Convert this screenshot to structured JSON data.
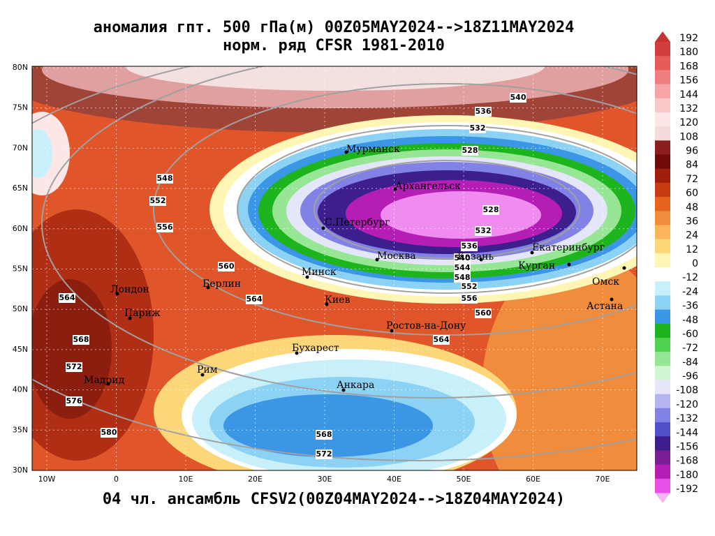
{
  "header": {
    "title_line1": "аномалия гпт. 500 гПа(м) 00Z05MAY2024-->18Z11MAY2024",
    "title_line2": "норм. ряд CFSR 1981-2010"
  },
  "map": {
    "lat_labels": [
      "80N",
      "75N",
      "70N",
      "65N",
      "60N",
      "55N",
      "50N",
      "45N",
      "40N",
      "35N",
      "30N"
    ],
    "lon_labels": [
      "10W",
      "0",
      "10E",
      "20E",
      "30E",
      "40E",
      "50E",
      "60E",
      "70E"
    ],
    "contour_labels": [
      "540",
      "536",
      "532",
      "528",
      "548",
      "552",
      "556",
      "528",
      "532",
      "536",
      "540",
      "544",
      "548",
      "552",
      "556",
      "560",
      "560",
      "564",
      "564",
      "568",
      "572",
      "576",
      "580",
      "568",
      "572",
      "564"
    ],
    "cities": [
      "Мурманск",
      "Архангельск",
      "С.Петербург",
      "Москва",
      "Казань",
      "Екатеринбург",
      "Курган",
      "Омск",
      "Астана",
      "Минск",
      "Берлин",
      "Лондон",
      "Париж",
      "Киев",
      "Ростов-на-Дону",
      "Бухарест",
      "Рим",
      "Мадрид",
      "Анкара"
    ]
  },
  "colorbar": {
    "labels": [
      "192",
      "180",
      "168",
      "156",
      "144",
      "132",
      "120",
      "108",
      "96",
      "84",
      "72",
      "60",
      "48",
      "36",
      "24",
      "12",
      "0",
      "-12",
      "-24",
      "-36",
      "-48",
      "-60",
      "-72",
      "-84",
      "-96",
      "-108",
      "-120",
      "-132",
      "-144",
      "-156",
      "-168",
      "-180",
      "-192"
    ],
    "colors": [
      "#d23c3c",
      "#e65a5a",
      "#f07e7e",
      "#f5a5a5",
      "#fac8c8",
      "#fce6e6",
      "#f5dada",
      "#8c1e1e",
      "#6e0a0a",
      "#a01e0a",
      "#c83c14",
      "#e6641e",
      "#f08c3c",
      "#fab45a",
      "#fcd77a",
      "#fff5b4",
      "#ffffff",
      "#c8f0fa",
      "#8cd2f5",
      "#3c96e6",
      "#1eb41e",
      "#50d250",
      "#96e696",
      "#d2f5d2",
      "#e6e6fa",
      "#b4b4f0",
      "#8282e6",
      "#5050c8",
      "#3c1e8c",
      "#7a1e96",
      "#b41eb4",
      "#e650e6"
    ]
  },
  "footer": {
    "caption": "04 чл. ансамбль CFSV2(00Z04MAY2024-->18Z04MAY2024)"
  }
}
